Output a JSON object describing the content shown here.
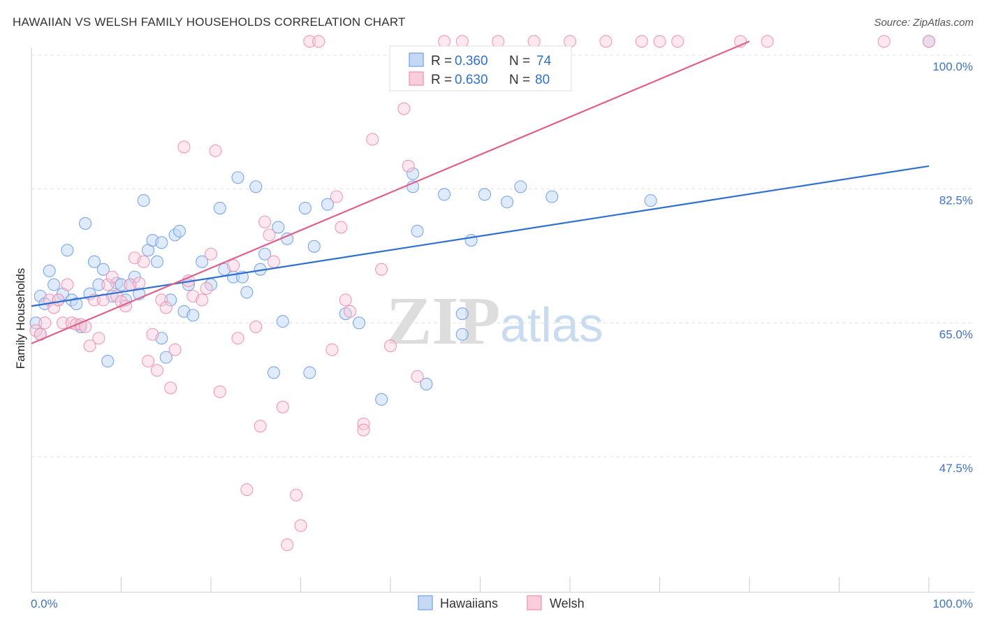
{
  "header": {
    "title": "HAWAIIAN VS WELSH FAMILY HOUSEHOLDS CORRELATION CHART",
    "source": "Source: ZipAtlas.com"
  },
  "watermark": {
    "zip": "ZIP",
    "atlas": "atlas"
  },
  "chart_data": {
    "type": "scatter",
    "title": "HAWAIIAN VS WELSH FAMILY HOUSEHOLDS CORRELATION CHART",
    "xlabel": "",
    "ylabel": "Family Households",
    "xlim": [
      0,
      100
    ],
    "ylim": [
      32,
      104
    ],
    "x_tick_labels": [
      "0.0%",
      "100.0%"
    ],
    "y_ticks": [
      47.5,
      65.0,
      82.5,
      100.0
    ],
    "y_tick_labels": [
      "47.5%",
      "65.0%",
      "82.5%",
      "100.0%"
    ],
    "grid": "horizontal dashed",
    "legend_top": [
      {
        "series": "Hawaiians",
        "r_label": "R =",
        "r_value": "0.360",
        "n_label": "N =",
        "n_value": "74",
        "color": "#6d9eeb"
      },
      {
        "series": "Welsh",
        "r_label": "R =",
        "r_value": "0.630",
        "n_label": "N =",
        "n_value": "80",
        "color": "#ef8fad"
      }
    ],
    "legend_bottom": [
      "Hawaiians",
      "Welsh"
    ],
    "series": [
      {
        "name": "Hawaiians",
        "color": "#6d9eeb",
        "trend_color": "#2f6fd0",
        "trend": [
          [
            0,
            67.2
          ],
          [
            100,
            85.5
          ]
        ],
        "points": [
          [
            0.5,
            65
          ],
          [
            1,
            68.5
          ],
          [
            1.5,
            67.5
          ],
          [
            2,
            71.8
          ],
          [
            2.5,
            70
          ],
          [
            3,
            68
          ],
          [
            3.5,
            68.8
          ],
          [
            4,
            74.5
          ],
          [
            4.5,
            68
          ],
          [
            5,
            67.5
          ],
          [
            5.5,
            64.5
          ],
          [
            6,
            78
          ],
          [
            6.5,
            68.8
          ],
          [
            7,
            73
          ],
          [
            7.5,
            70
          ],
          [
            8,
            72
          ],
          [
            8.5,
            60
          ],
          [
            9,
            68.5
          ],
          [
            9.5,
            70.2
          ],
          [
            10,
            70
          ],
          [
            10.5,
            68
          ],
          [
            11,
            70
          ],
          [
            11.5,
            71
          ],
          [
            12,
            68.8
          ],
          [
            12.5,
            81
          ],
          [
            13,
            74.5
          ],
          [
            13.5,
            75.8
          ],
          [
            14,
            73
          ],
          [
            14.5,
            75.5
          ],
          [
            15,
            60.5
          ],
          [
            15.5,
            68
          ],
          [
            16,
            76.5
          ],
          [
            16.5,
            77
          ],
          [
            17,
            66.5
          ],
          [
            17.5,
            70
          ],
          [
            18,
            66
          ],
          [
            19,
            73
          ],
          [
            20,
            70
          ],
          [
            21,
            80
          ],
          [
            21.5,
            72
          ],
          [
            22.5,
            71
          ],
          [
            23,
            84
          ],
          [
            23.5,
            71
          ],
          [
            24,
            69
          ],
          [
            25,
            82.8
          ],
          [
            25.5,
            72
          ],
          [
            26,
            74
          ],
          [
            27,
            58.5
          ],
          [
            27.5,
            77.5
          ],
          [
            28,
            65.2
          ],
          [
            28.5,
            76
          ],
          [
            30.5,
            80
          ],
          [
            31,
            58.5
          ],
          [
            31.5,
            75
          ],
          [
            33,
            80.5
          ],
          [
            35,
            66.2
          ],
          [
            36.5,
            65
          ],
          [
            39,
            55
          ],
          [
            42.5,
            82.8
          ],
          [
            42.5,
            84.5
          ],
          [
            43,
            77
          ],
          [
            44,
            57
          ],
          [
            46,
            81.8
          ],
          [
            48,
            66.2
          ],
          [
            48,
            63.5
          ],
          [
            49,
            75.8
          ],
          [
            50.5,
            81.8
          ],
          [
            53,
            80.8
          ],
          [
            54.5,
            82.8
          ],
          [
            58,
            81.5
          ],
          [
            69,
            81
          ],
          [
            100,
            101.8
          ],
          [
            14.5,
            63
          ],
          [
            1,
            63.5
          ]
        ]
      },
      {
        "name": "Welsh",
        "color": "#ef8fad",
        "trend_color": "#e0608a",
        "trend": [
          [
            0,
            62.3
          ],
          [
            80,
            101.8
          ]
        ],
        "points": [
          [
            0.5,
            64
          ],
          [
            1,
            63.5
          ],
          [
            1.5,
            65
          ],
          [
            2,
            68
          ],
          [
            2.5,
            67
          ],
          [
            3,
            68
          ],
          [
            3.5,
            65
          ],
          [
            4,
            70
          ],
          [
            4.5,
            65
          ],
          [
            5,
            64.8
          ],
          [
            5.5,
            64.8
          ],
          [
            6,
            64.5
          ],
          [
            6.5,
            62
          ],
          [
            7,
            68
          ],
          [
            7.5,
            63
          ],
          [
            8,
            68
          ],
          [
            8.5,
            70
          ],
          [
            9,
            71
          ],
          [
            9.5,
            68.5
          ],
          [
            10,
            67.8
          ],
          [
            10.5,
            67.2
          ],
          [
            11,
            70
          ],
          [
            11.5,
            73.5
          ],
          [
            12,
            70.2
          ],
          [
            12.5,
            73
          ],
          [
            13,
            60
          ],
          [
            13.5,
            63.5
          ],
          [
            14,
            58.8
          ],
          [
            14.5,
            68
          ],
          [
            15,
            67
          ],
          [
            15.5,
            56.5
          ],
          [
            16,
            61.5
          ],
          [
            17,
            88
          ],
          [
            17.5,
            70.5
          ],
          [
            18,
            68.5
          ],
          [
            19,
            68
          ],
          [
            19.5,
            69.5
          ],
          [
            20,
            74
          ],
          [
            20.5,
            87.5
          ],
          [
            21,
            56
          ],
          [
            22.5,
            72.5
          ],
          [
            23,
            63
          ],
          [
            24,
            43.2
          ],
          [
            25,
            64.5
          ],
          [
            25.5,
            51.5
          ],
          [
            26,
            78.2
          ],
          [
            26.5,
            76.5
          ],
          [
            27,
            73
          ],
          [
            28,
            54
          ],
          [
            29.5,
            42.5
          ],
          [
            30,
            38.5
          ],
          [
            31,
            101.8
          ],
          [
            32,
            101.8
          ],
          [
            33.5,
            61.5
          ],
          [
            34,
            81.5
          ],
          [
            34.5,
            77.5
          ],
          [
            35,
            68
          ],
          [
            35.5,
            66.5
          ],
          [
            37,
            51.8
          ],
          [
            38,
            89
          ],
          [
            39,
            72
          ],
          [
            40,
            62
          ],
          [
            41.5,
            93
          ],
          [
            42,
            85.5
          ],
          [
            43,
            58
          ],
          [
            46,
            101.8
          ],
          [
            48,
            101.8
          ],
          [
            52,
            101.8
          ],
          [
            56,
            101.8
          ],
          [
            60,
            101.8
          ],
          [
            64,
            101.8
          ],
          [
            68,
            101.8
          ],
          [
            70,
            101.8
          ],
          [
            72,
            101.8
          ],
          [
            79,
            101.8
          ],
          [
            82,
            101.8
          ],
          [
            95,
            101.8
          ],
          [
            100,
            101.8
          ],
          [
            37,
            51
          ],
          [
            28.5,
            36
          ]
        ]
      }
    ]
  }
}
